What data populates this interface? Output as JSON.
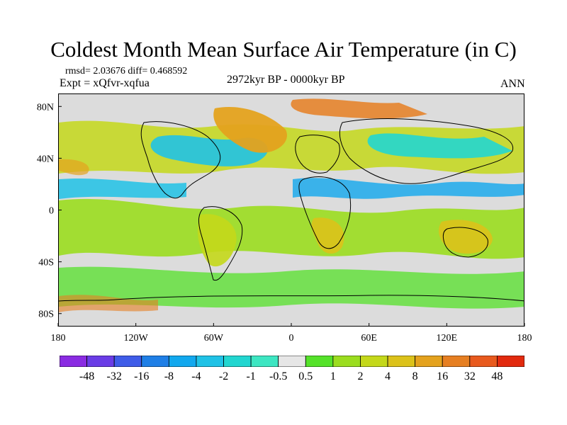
{
  "title": "Coldest Month Mean Surface Air Temperature (in C)",
  "stats": "rmsd= 2.03676 diff= 0.468592",
  "experiment": "Expt = xQfvr-xqfua",
  "period": "2972kyr BP - 0000kyr BP",
  "season": "ANN",
  "map": {
    "lat_ticks": [
      "80N",
      "40N",
      "0",
      "40S",
      "80S"
    ],
    "lon_ticks": [
      "180",
      "120W",
      "60W",
      "0",
      "60E",
      "120E",
      "180"
    ]
  },
  "colorbar": {
    "colors": [
      "#8a2be2",
      "#6a3ce6",
      "#3f5ce8",
      "#1f7fe6",
      "#12a8ee",
      "#20c2e6",
      "#22d6d0",
      "#3de6c2",
      "#e6e6e6",
      "#55e22a",
      "#9bdd1f",
      "#c4d81a",
      "#dcc21a",
      "#e4a21e",
      "#e67f22",
      "#e85a1e",
      "#e22a0e"
    ],
    "labels": [
      "-48",
      "-32",
      "-16",
      "-8",
      "-4",
      "-2",
      "-1",
      "-0.5",
      "0.5",
      "1",
      "2",
      "4",
      "8",
      "16",
      "32",
      "48"
    ]
  }
}
